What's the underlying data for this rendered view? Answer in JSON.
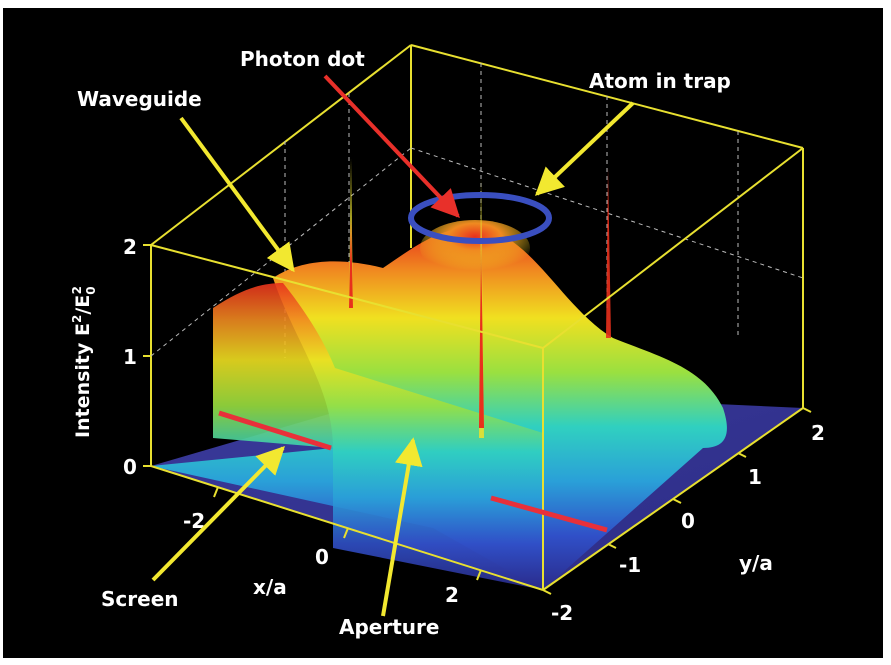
{
  "chart_data": {
    "type": "surface",
    "zlabel": "Intensity E²/E₀²",
    "zlabel_parts": {
      "main": "Intensity E",
      "sup1": "2",
      "slash": "/E",
      "sub": "0",
      "sup2": "2"
    },
    "xlabel": "x/a",
    "ylabel": "y/a",
    "x_ticks": [
      "-2",
      "0",
      "2"
    ],
    "y_ticks": [
      "-2",
      "-1",
      "0",
      "1",
      "2"
    ],
    "z_ticks": [
      "0",
      "1",
      "2"
    ],
    "zlim": [
      0,
      2
    ],
    "annotations": [
      {
        "id": "waveguide",
        "text": "Waveguide",
        "arrow_color": "#f2e830"
      },
      {
        "id": "photon-dot",
        "text": "Photon dot",
        "arrow_color": "#e8302a"
      },
      {
        "id": "atom-in-trap",
        "text": "Atom in trap",
        "arrow_color": "#f2e830"
      },
      {
        "id": "screen",
        "text": "Screen",
        "arrow_color": "#f2e830"
      },
      {
        "id": "aperture",
        "text": "Aperture",
        "arrow_color": "#f2e830"
      }
    ],
    "colors": {
      "background": "#000000",
      "box": "#e8e030",
      "screen_marker": "#e8303a",
      "trap_ring": "#3a4fc0",
      "colormap": [
        "#2a2a8a",
        "#3050c8",
        "#2aa0d8",
        "#30d0c0",
        "#9ae040",
        "#f0e020",
        "#f08a20",
        "#e8301c"
      ]
    }
  }
}
